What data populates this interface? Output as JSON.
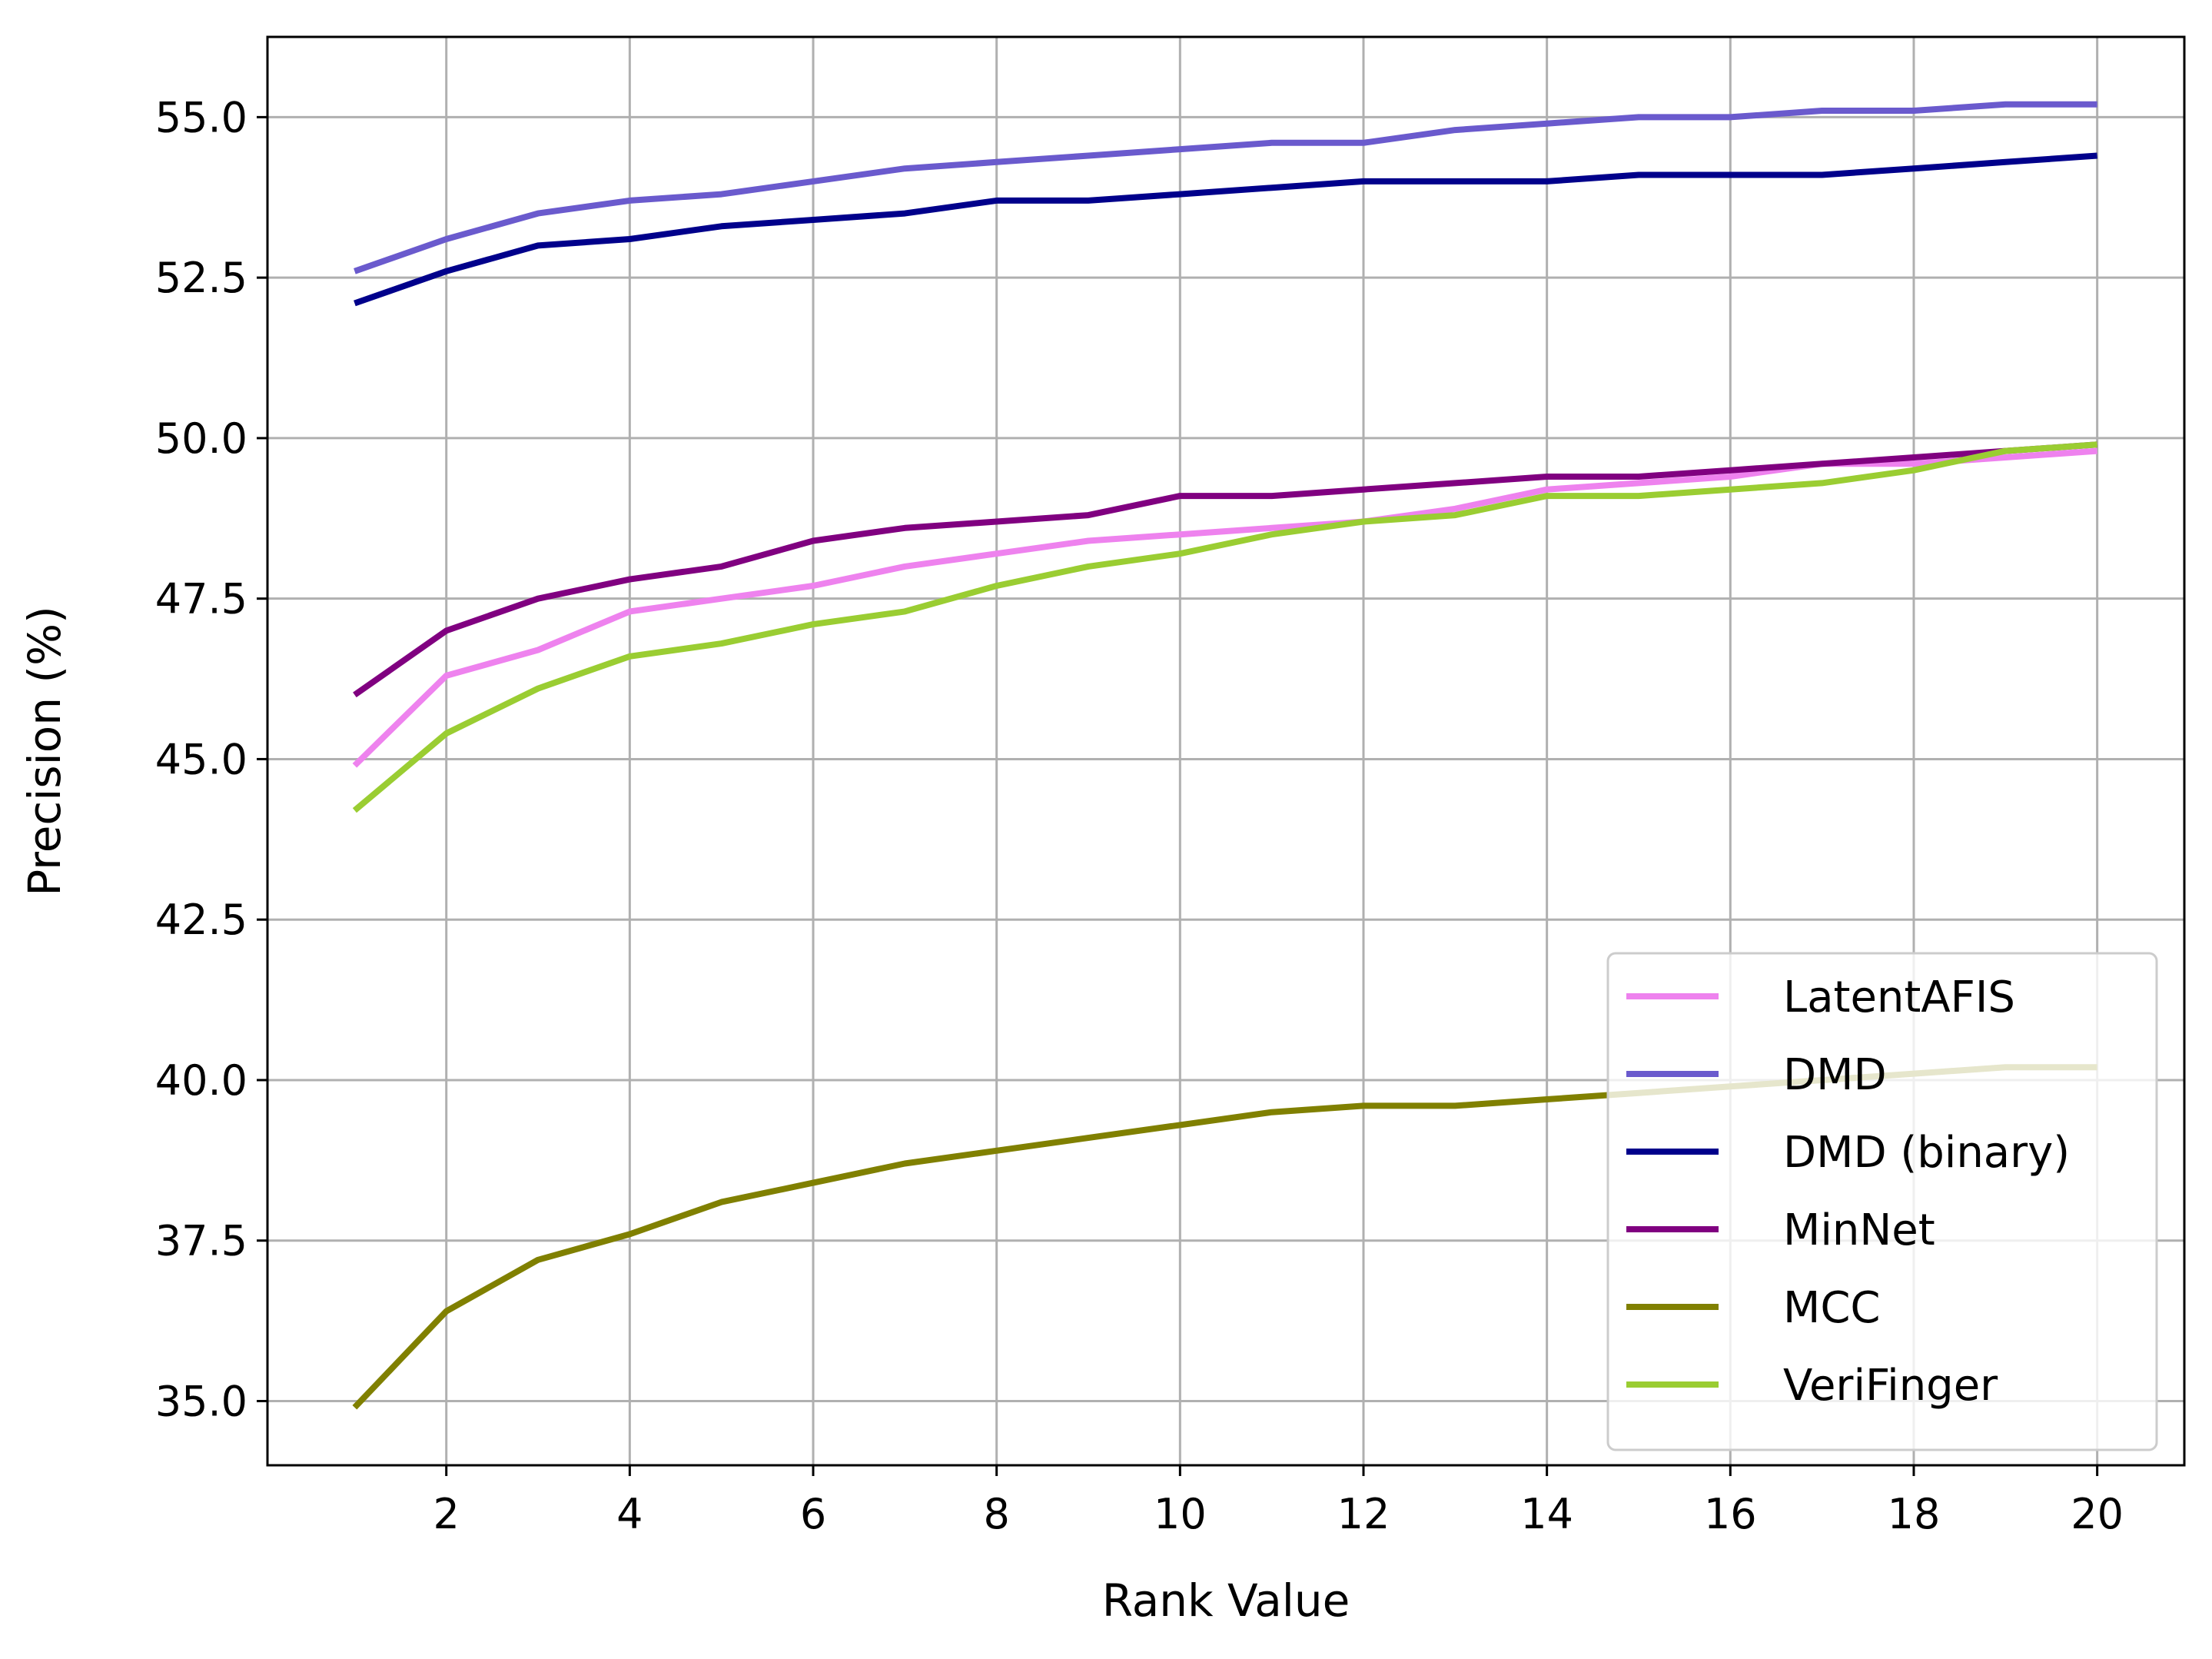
{
  "chart_data": {
    "type": "line",
    "title": "",
    "xlabel": "Rank Value",
    "ylabel": "Precision (%)",
    "xlim": [
      0.05,
      20.95
    ],
    "ylim": [
      34.0,
      56.25
    ],
    "xticks": [
      2,
      4,
      6,
      8,
      10,
      12,
      14,
      16,
      18,
      20
    ],
    "xtick_labels": [
      "2",
      "4",
      "6",
      "8",
      "10",
      "12",
      "14",
      "16",
      "18",
      "20"
    ],
    "yticks": [
      35.0,
      37.5,
      40.0,
      42.5,
      45.0,
      47.5,
      50.0,
      52.5,
      55.0
    ],
    "ytick_labels": [
      "35.0",
      "37.5",
      "40.0",
      "42.5",
      "45.0",
      "47.5",
      "50.0",
      "52.5",
      "55.0"
    ],
    "grid": true,
    "legend_position": "lower-right",
    "x": [
      1,
      2,
      3,
      4,
      5,
      6,
      7,
      8,
      9,
      10,
      11,
      12,
      13,
      14,
      15,
      16,
      17,
      18,
      19,
      20
    ],
    "series": [
      {
        "name": "LatentAFIS",
        "color": "#ee82ee",
        "values": [
          44.9,
          46.3,
          46.7,
          47.3,
          47.5,
          47.7,
          48.0,
          48.2,
          48.4,
          48.5,
          48.6,
          48.7,
          48.9,
          49.2,
          49.3,
          49.4,
          49.6,
          49.6,
          49.7,
          49.8
        ]
      },
      {
        "name": "DMD",
        "color": "#6a5acd",
        "values": [
          52.6,
          53.1,
          53.5,
          53.7,
          53.8,
          54.0,
          54.2,
          54.3,
          54.4,
          54.5,
          54.6,
          54.6,
          54.8,
          54.9,
          55.0,
          55.0,
          55.1,
          55.1,
          55.2,
          55.2
        ]
      },
      {
        "name": "DMD (binary)",
        "color": "#00008b",
        "values": [
          52.1,
          52.6,
          53.0,
          53.1,
          53.3,
          53.4,
          53.5,
          53.7,
          53.7,
          53.8,
          53.9,
          54.0,
          54.0,
          54.0,
          54.1,
          54.1,
          54.1,
          54.2,
          54.3,
          54.4
        ]
      },
      {
        "name": "MinNet",
        "color": "#800080",
        "values": [
          46.0,
          47.0,
          47.5,
          47.8,
          48.0,
          48.4,
          48.6,
          48.7,
          48.8,
          49.1,
          49.1,
          49.2,
          49.3,
          49.4,
          49.4,
          49.5,
          49.6,
          49.7,
          49.8,
          49.9
        ]
      },
      {
        "name": "MCC",
        "color": "#808000",
        "values": [
          34.9,
          36.4,
          37.2,
          37.6,
          38.1,
          38.4,
          38.7,
          38.9,
          39.1,
          39.3,
          39.5,
          39.6,
          39.6,
          39.7,
          39.8,
          39.9,
          40.0,
          40.1,
          40.2,
          40.2
        ]
      },
      {
        "name": "VeriFinger",
        "color": "#9acd32",
        "values": [
          44.2,
          45.4,
          46.1,
          46.6,
          46.8,
          47.1,
          47.3,
          47.7,
          48.0,
          48.2,
          48.5,
          48.7,
          48.8,
          49.1,
          49.1,
          49.2,
          49.3,
          49.5,
          49.8,
          49.9
        ]
      }
    ]
  }
}
